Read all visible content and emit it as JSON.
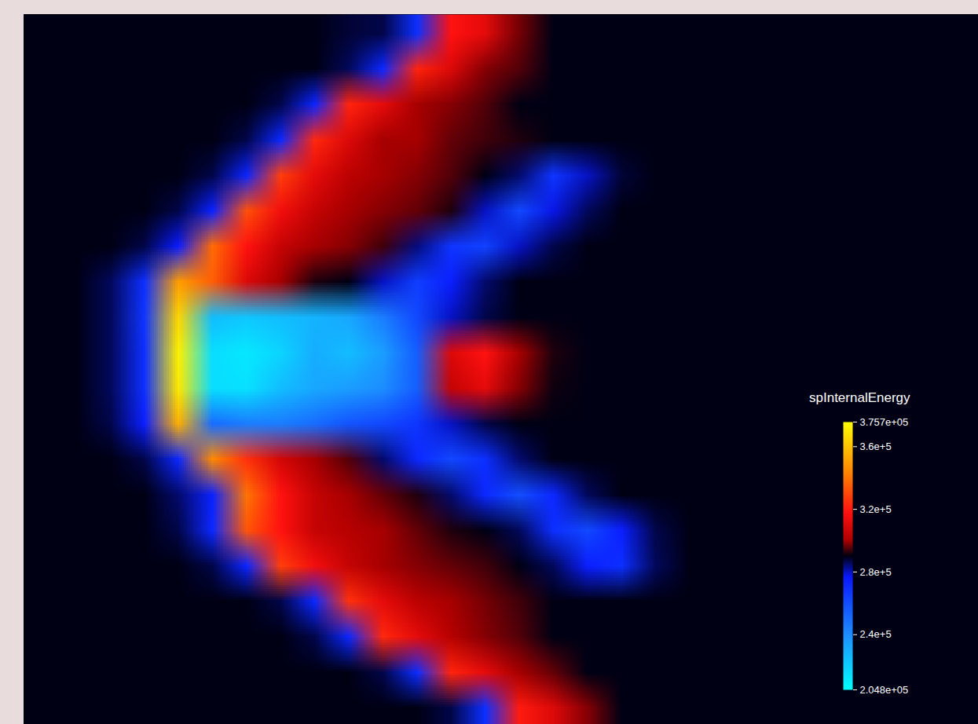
{
  "chart_data": {
    "type": "heatmap",
    "tick_labels": false,
    "cells": [
      [
        290000,
        290000,
        290000,
        290000,
        290000,
        290000,
        290000,
        290000,
        290000,
        288000,
        287000,
        270000,
        318000,
        312000,
        297000,
        290000,
        290000,
        290000,
        290000,
        290000,
        290000,
        290000,
        290000,
        290000,
        290000,
        290000,
        290000,
        290000
      ],
      [
        290000,
        290000,
        290000,
        290000,
        290000,
        290000,
        290000,
        290000,
        290000,
        286000,
        272000,
        322000,
        310000,
        298000,
        295000,
        290000,
        290000,
        290000,
        290000,
        290000,
        290000,
        290000,
        290000,
        290000,
        290000,
        290000,
        290000,
        290000
      ],
      [
        290000,
        290000,
        290000,
        290000,
        290000,
        290000,
        290000,
        287000,
        273000,
        322000,
        312000,
        300000,
        298000,
        295000,
        290000,
        290000,
        290000,
        290000,
        290000,
        290000,
        290000,
        290000,
        290000,
        290000,
        290000,
        290000,
        290000,
        290000
      ],
      [
        290000,
        290000,
        290000,
        290000,
        290000,
        290000,
        287000,
        272000,
        323000,
        310000,
        300000,
        300000,
        296000,
        294000,
        292000,
        290000,
        290000,
        290000,
        290000,
        290000,
        290000,
        290000,
        290000,
        290000,
        290000,
        290000,
        290000,
        290000
      ],
      [
        290000,
        290000,
        290000,
        290000,
        290000,
        287000,
        273000,
        328000,
        312000,
        303000,
        300000,
        298000,
        295000,
        290000,
        285000,
        268000,
        280000,
        288000,
        290000,
        290000,
        290000,
        290000,
        290000,
        290000,
        290000,
        290000,
        290000,
        290000
      ],
      [
        290000,
        290000,
        290000,
        290000,
        287000,
        274000,
        332000,
        315000,
        305000,
        300000,
        298000,
        296000,
        292000,
        280000,
        262000,
        278000,
        286000,
        290000,
        290000,
        290000,
        290000,
        290000,
        290000,
        290000,
        290000,
        290000,
        290000,
        290000
      ],
      [
        290000,
        290000,
        290000,
        287000,
        276000,
        338000,
        318000,
        305000,
        300000,
        298000,
        294000,
        284000,
        268000,
        264000,
        280000,
        287000,
        290000,
        290000,
        290000,
        290000,
        290000,
        290000,
        290000,
        290000,
        290000,
        290000,
        290000,
        290000
      ],
      [
        290000,
        290000,
        286000,
        270000,
        350000,
        335000,
        310000,
        300000,
        292000,
        290000,
        280000,
        265000,
        275000,
        285000,
        290000,
        290000,
        290000,
        290000,
        290000,
        290000,
        290000,
        290000,
        290000,
        290000,
        290000,
        290000,
        290000,
        290000
      ],
      [
        290000,
        290000,
        286000,
        268000,
        365000,
        225000,
        222000,
        225000,
        228000,
        232000,
        245000,
        262000,
        280000,
        287000,
        290000,
        290000,
        290000,
        290000,
        290000,
        290000,
        290000,
        290000,
        290000,
        290000,
        290000,
        290000,
        290000,
        290000
      ],
      [
        290000,
        290000,
        286000,
        270000,
        372000,
        215000,
        212000,
        218000,
        230000,
        225000,
        235000,
        255000,
        310000,
        318000,
        300000,
        292000,
        290000,
        290000,
        290000,
        290000,
        290000,
        290000,
        290000,
        290000,
        290000,
        290000,
        290000,
        290000
      ],
      [
        290000,
        290000,
        286000,
        270000,
        370000,
        215000,
        214000,
        225000,
        232000,
        235000,
        240000,
        255000,
        305000,
        312000,
        298000,
        291000,
        290000,
        290000,
        290000,
        290000,
        290000,
        290000,
        290000,
        290000,
        290000,
        290000,
        290000,
        290000
      ],
      [
        290000,
        290000,
        287000,
        275000,
        355000,
        250000,
        245000,
        245000,
        250000,
        258000,
        262000,
        268000,
        280000,
        287000,
        290000,
        290000,
        290000,
        290000,
        290000,
        290000,
        290000,
        290000,
        290000,
        290000,
        290000,
        290000,
        290000,
        290000
      ],
      [
        290000,
        290000,
        290000,
        287000,
        272000,
        345000,
        325000,
        308000,
        300000,
        295000,
        285000,
        272000,
        262000,
        270000,
        285000,
        290000,
        290000,
        290000,
        290000,
        290000,
        290000,
        290000,
        290000,
        290000,
        290000,
        290000,
        290000,
        290000
      ],
      [
        290000,
        290000,
        290000,
        290000,
        285000,
        274000,
        340000,
        318000,
        305000,
        300000,
        296000,
        292000,
        285000,
        272000,
        260000,
        272000,
        286000,
        290000,
        290000,
        290000,
        290000,
        290000,
        290000,
        290000,
        290000,
        290000,
        290000,
        290000
      ],
      [
        290000,
        290000,
        290000,
        290000,
        287000,
        272000,
        333000,
        318000,
        305000,
        302000,
        300000,
        296000,
        292000,
        290000,
        286000,
        270000,
        262000,
        275000,
        287000,
        290000,
        290000,
        290000,
        290000,
        290000,
        290000,
        290000,
        290000,
        290000
      ],
      [
        290000,
        290000,
        290000,
        290000,
        290000,
        287000,
        273000,
        328000,
        315000,
        305000,
        300000,
        298000,
        296000,
        294000,
        290000,
        286000,
        275000,
        270000,
        286000,
        290000,
        290000,
        290000,
        290000,
        290000,
        290000,
        290000,
        290000,
        290000
      ],
      [
        290000,
        290000,
        290000,
        290000,
        290000,
        290000,
        290000,
        287000,
        272000,
        325000,
        312000,
        303000,
        300000,
        297000,
        294000,
        290000,
        290000,
        290000,
        290000,
        290000,
        290000,
        290000,
        290000,
        290000,
        290000,
        290000,
        290000,
        290000
      ],
      [
        290000,
        290000,
        290000,
        290000,
        290000,
        290000,
        290000,
        290000,
        287000,
        272000,
        323000,
        312000,
        302000,
        298000,
        295000,
        290000,
        290000,
        290000,
        290000,
        290000,
        290000,
        290000,
        290000,
        290000,
        290000,
        290000,
        290000,
        290000
      ],
      [
        290000,
        290000,
        290000,
        290000,
        290000,
        290000,
        290000,
        290000,
        290000,
        290000,
        287000,
        271000,
        322000,
        312000,
        300000,
        296000,
        290000,
        290000,
        290000,
        290000,
        290000,
        290000,
        290000,
        290000,
        290000,
        290000,
        290000,
        290000
      ],
      [
        290000,
        290000,
        290000,
        290000,
        290000,
        290000,
        290000,
        290000,
        290000,
        290000,
        290000,
        290000,
        287000,
        270000,
        320000,
        310000,
        298000,
        290000,
        290000,
        290000,
        290000,
        290000,
        290000,
        290000,
        290000,
        290000,
        290000,
        290000
      ]
    ],
    "colorbar": {
      "title": "spInternalEnergy",
      "range": [
        204800,
        375700
      ],
      "ticks": [
        {
          "value": 375700,
          "label": "3.757e+05"
        },
        {
          "value": 360000,
          "label": "3.6e+5"
        },
        {
          "value": 320000,
          "label": "3.2e+5"
        },
        {
          "value": 280000,
          "label": "2.8e+5"
        },
        {
          "value": 240000,
          "label": "2.4e+5"
        },
        {
          "value": 204800,
          "label": "2.048e+05"
        }
      ]
    }
  }
}
